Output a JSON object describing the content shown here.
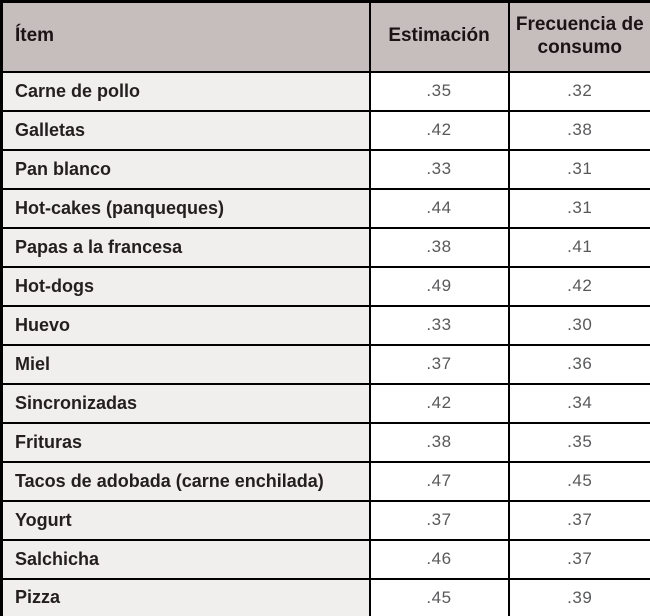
{
  "table": {
    "headers": {
      "item": "Ítem",
      "estimacion": "Estimación",
      "frecuencia": "Frecuencia de consumo"
    },
    "rows": [
      {
        "item": "Carne de pollo",
        "estimacion": ".35",
        "frecuencia": ".32"
      },
      {
        "item": "Galletas",
        "estimacion": ".42",
        "frecuencia": ".38"
      },
      {
        "item": "Pan blanco",
        "estimacion": ".33",
        "frecuencia": ".31"
      },
      {
        "item": "Hot-cakes (panqueques)",
        "estimacion": ".44",
        "frecuencia": ".31"
      },
      {
        "item": "Papas a la francesa",
        "estimacion": ".38",
        "frecuencia": ".41"
      },
      {
        "item": "Hot-dogs",
        "estimacion": ".49",
        "frecuencia": ".42"
      },
      {
        "item": "Huevo",
        "estimacion": ".33",
        "frecuencia": ".30"
      },
      {
        "item": "Miel",
        "estimacion": ".37",
        "frecuencia": ".36"
      },
      {
        "item": "Sincronizadas",
        "estimacion": ".42",
        "frecuencia": ".34"
      },
      {
        "item": "Frituras",
        "estimacion": ".38",
        "frecuencia": ".35"
      },
      {
        "item": "Tacos de adobada (carne enchilada)",
        "estimacion": ".47",
        "frecuencia": ".45"
      },
      {
        "item": "Yogurt",
        "estimacion": ".37",
        "frecuencia": ".37"
      },
      {
        "item": "Salchicha",
        "estimacion": ".46",
        "frecuencia": ".37"
      },
      {
        "item": "Pizza",
        "estimacion": ".45",
        "frecuencia": ".39"
      }
    ]
  },
  "colors": {
    "header_bg": "#c6bdbd",
    "item_cell_bg": "#f0efed",
    "value_cell_bg": "#ffffff",
    "border": "#000000",
    "header_text": "#1a1414",
    "item_text": "#231f20",
    "value_text": "#58595b"
  }
}
